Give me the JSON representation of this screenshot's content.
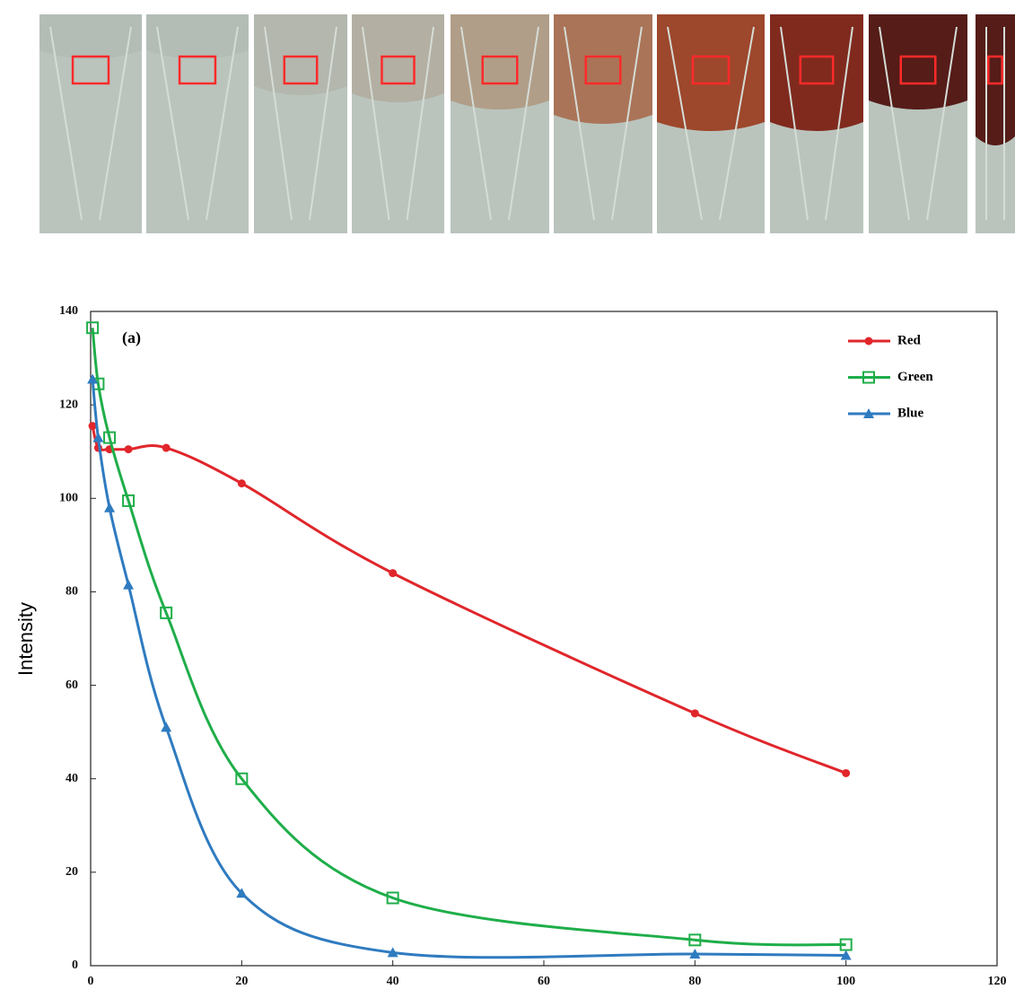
{
  "chart_data": {
    "type": "line",
    "annotation": "(a)",
    "y_label": "Intensity",
    "x": [
      0.25,
      1,
      2.5,
      5,
      10,
      20,
      40,
      80,
      100
    ],
    "series": [
      {
        "name": "Red",
        "color": "#e0262b",
        "marker": "circle",
        "values": [
          115.5,
          110.8,
          110.5,
          110.5,
          110.8,
          103.2,
          84,
          54,
          41.2
        ]
      },
      {
        "name": "Green",
        "color": "#1fae4a",
        "marker": "square",
        "values": [
          136.5,
          124.5,
          113,
          99.5,
          75.5,
          40,
          14.5,
          5.5,
          4.5
        ]
      },
      {
        "name": "Blue",
        "color": "#2f7bc0",
        "marker": "triangle",
        "values": [
          125.5,
          113,
          98,
          81.5,
          51,
          15.5,
          2.8,
          2.5,
          2.2
        ]
      }
    ],
    "xlim": [
      0,
      120
    ],
    "xticks": [
      0,
      20,
      40,
      60,
      80,
      100,
      120
    ],
    "ylim": [
      0,
      140
    ],
    "yticks": [
      0,
      20,
      40,
      60,
      80,
      100,
      120,
      140
    ],
    "legend": "top-right"
  }
}
